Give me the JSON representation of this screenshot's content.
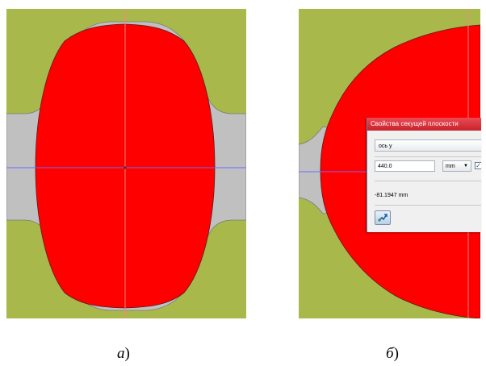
{
  "colors": {
    "background_olive": "#a9b84b",
    "gray_region": "#c0c0c0",
    "red_region": "#ff0000",
    "crosshair_horizontal": "#6b6bff",
    "crosshair_vertical": "#ff8080",
    "dialog_title_bar": "#d8303a"
  },
  "captions": {
    "a": {
      "letter": "а",
      "paren": ")"
    },
    "b": {
      "letter": "б",
      "paren": ")"
    }
  },
  "dialog": {
    "title": "Свойства секущей плоскости",
    "axis_select": "ось y",
    "position_value": "440.0",
    "unit_select": "mm",
    "checkbox_checked": true,
    "offset_readout": "-81.1947 mm",
    "apply_icon": "pick-tool-icon"
  }
}
